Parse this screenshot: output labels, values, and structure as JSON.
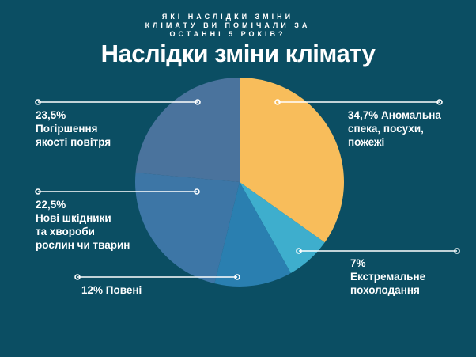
{
  "colors": {
    "background": "#0B4E63",
    "text": "#FFFFFF",
    "leader_line": "#FFFFFF"
  },
  "header": {
    "eyebrow": "ЯКІ НАСЛІДКИ ЗМІНИ\nКЛІМАТУ ВИ ПОМІЧАЛИ ЗА\nОСТАННІ 5 РОКІВ?",
    "title": "Наслідки зміни клімату"
  },
  "chart_data": {
    "type": "pie",
    "title": "Наслідки зміни клімату",
    "start_angle_deg": 0,
    "direction": "clockwise",
    "legend_position": "callout-labels",
    "slices": [
      {
        "label": "Аномальна спека, посухи, пожежі",
        "value_pct": 34.7,
        "display_value": "34,7%",
        "color": "#F8BD5B"
      },
      {
        "label": "Екстремальне похолодання",
        "value_pct": 7,
        "display_value": "7%",
        "color": "#3EAECD"
      },
      {
        "label": "Повені",
        "value_pct": 12,
        "display_value": "12%",
        "color": "#2A7FB0"
      },
      {
        "label": "Нові шкідники та хвороби рослин чи тварин",
        "value_pct": 22.5,
        "display_value": "22,5%",
        "color": "#3D76A6"
      },
      {
        "label": "Погіршення якості повітря",
        "value_pct": 23.5,
        "display_value": "23,5%",
        "color": "#4A739D"
      }
    ]
  },
  "callouts": [
    {
      "name": "heat",
      "text": "34,7% Аномальна\nспека, посухи,\nпожежі"
    },
    {
      "name": "cold",
      "text": "7%\nЕкстремальне\nпохолодання"
    },
    {
      "name": "air",
      "text": "23,5%\nПогіршення\nякості повітря"
    },
    {
      "name": "pests",
      "text": "22,5%\nНові шкідники\nта хвороби\nрослин чи тварин"
    },
    {
      "name": "floods",
      "text": "12% Повені"
    }
  ]
}
